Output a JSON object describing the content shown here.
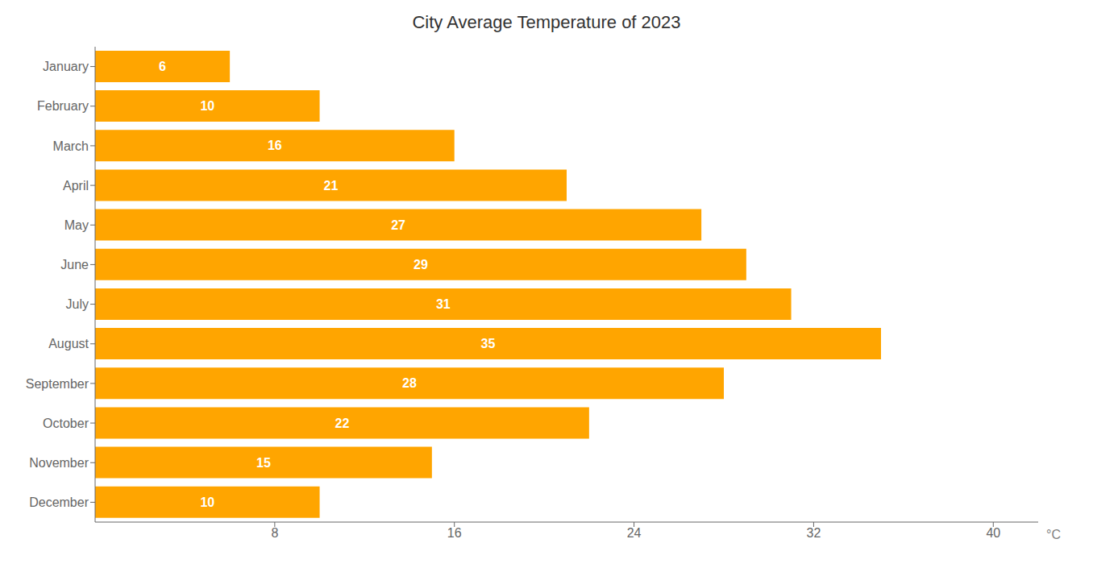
{
  "chart_data": {
    "type": "bar",
    "title": "City Average Temperature of 2023",
    "orientation": "horizontal",
    "categories": [
      "January",
      "February",
      "March",
      "April",
      "May",
      "June",
      "July",
      "August",
      "September",
      "October",
      "November",
      "December"
    ],
    "values": [
      6,
      10,
      16,
      21,
      27,
      29,
      31,
      35,
      28,
      22,
      15,
      10
    ],
    "color": "#FFA500",
    "xlim": [
      0,
      42
    ],
    "xticks": [
      8,
      16,
      24,
      32,
      40
    ],
    "xlabel": "°C",
    "data_labels": true,
    "grid": false
  }
}
